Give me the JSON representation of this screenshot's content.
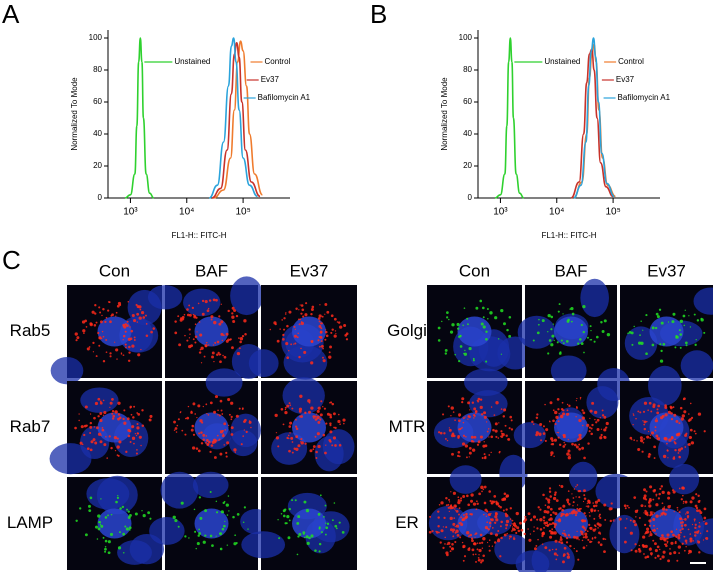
{
  "figure": {
    "panels": [
      "A",
      "B",
      "C"
    ]
  },
  "chart_data": [
    {
      "type": "line",
      "xscale": "log",
      "xlabel": "FL1-H:: FITC-H",
      "ylabel": "Normalized To Mode",
      "xlim": [
        400,
        680000
      ],
      "xticks": [
        {
          "value": 1000,
          "label": "10³"
        },
        {
          "value": 10000,
          "label": "10⁴"
        },
        {
          "value": 100000,
          "label": "10⁵"
        }
      ],
      "ylim": [
        0,
        105
      ],
      "yticks": [
        0,
        20,
        40,
        60,
        80,
        100
      ],
      "series": [
        {
          "name": "Unstained",
          "color": "#2fd12f",
          "x": [
            800,
            1000,
            1200,
            1300,
            1400,
            1500,
            1600,
            1700,
            1900,
            2200,
            2600
          ],
          "values": [
            0,
            2,
            15,
            45,
            85,
            100,
            85,
            50,
            15,
            3,
            0
          ]
        },
        {
          "name": "Control",
          "color": "#ef7b2d",
          "x": [
            30000,
            45000,
            60000,
            70000,
            80000,
            90000,
            100000,
            115000,
            130000,
            160000,
            220000
          ],
          "values": [
            0,
            5,
            25,
            55,
            85,
            98,
            92,
            70,
            40,
            15,
            2
          ]
        },
        {
          "name": "Ev37",
          "color": "#c8322a",
          "x": [
            28000,
            40000,
            52000,
            62000,
            70000,
            77000,
            85000,
            95000,
            110000,
            140000,
            200000
          ],
          "values": [
            0,
            6,
            30,
            65,
            90,
            97,
            88,
            60,
            30,
            10,
            1
          ]
        },
        {
          "name": "Bafilomycin A1",
          "color": "#2aa3db",
          "x": [
            25000,
            35000,
            45000,
            55000,
            62000,
            68000,
            75000,
            85000,
            100000,
            130000,
            180000
          ],
          "values": [
            0,
            8,
            35,
            70,
            95,
            100,
            85,
            55,
            25,
            8,
            1
          ]
        }
      ]
    },
    {
      "type": "line",
      "xscale": "log",
      "xlabel": "FL1-H:: FITC-H",
      "ylabel": "Normalized To Mode",
      "xlim": [
        400,
        680000
      ],
      "xticks": [
        {
          "value": 1000,
          "label": "10³"
        },
        {
          "value": 10000,
          "label": "10⁴"
        },
        {
          "value": 100000,
          "label": "10⁵"
        }
      ],
      "ylim": [
        0,
        105
      ],
      "yticks": [
        0,
        20,
        40,
        60,
        80,
        100
      ],
      "series": [
        {
          "name": "Unstained",
          "color": "#2fd12f",
          "x": [
            800,
            1000,
            1200,
            1300,
            1400,
            1500,
            1600,
            1700,
            1900,
            2200,
            2600
          ],
          "values": [
            0,
            2,
            15,
            45,
            85,
            100,
            85,
            50,
            15,
            3,
            0
          ]
        },
        {
          "name": "Control",
          "color": "#ef7b2d",
          "x": [
            20000,
            28000,
            34000,
            38000,
            42000,
            46000,
            50000,
            56000,
            65000,
            80000,
            110000
          ],
          "values": [
            0,
            10,
            40,
            75,
            90,
            96,
            85,
            55,
            25,
            8,
            1
          ]
        },
        {
          "name": "Ev37",
          "color": "#c8322a",
          "x": [
            18000,
            25000,
            30000,
            34000,
            38000,
            42000,
            46000,
            52000,
            60000,
            75000,
            100000
          ],
          "values": [
            0,
            10,
            40,
            72,
            90,
            93,
            80,
            50,
            22,
            7,
            1
          ]
        },
        {
          "name": "Bafilomycin A1",
          "color": "#2aa3db",
          "x": [
            20000,
            27000,
            33000,
            37000,
            41000,
            45000,
            49000,
            55000,
            63000,
            78000,
            105000
          ],
          "values": [
            0,
            8,
            35,
            70,
            92,
            100,
            88,
            60,
            28,
            9,
            1
          ]
        }
      ]
    }
  ],
  "microscopy": {
    "left": {
      "columns": [
        "Con",
        "BAF",
        "Ev37"
      ],
      "rows": [
        "Rab5",
        "Rab7",
        "LAMP"
      ]
    },
    "right": {
      "columns": [
        "Con",
        "BAF",
        "Ev37"
      ],
      "rows": [
        "Golgi",
        "MTR",
        "ER"
      ]
    }
  }
}
